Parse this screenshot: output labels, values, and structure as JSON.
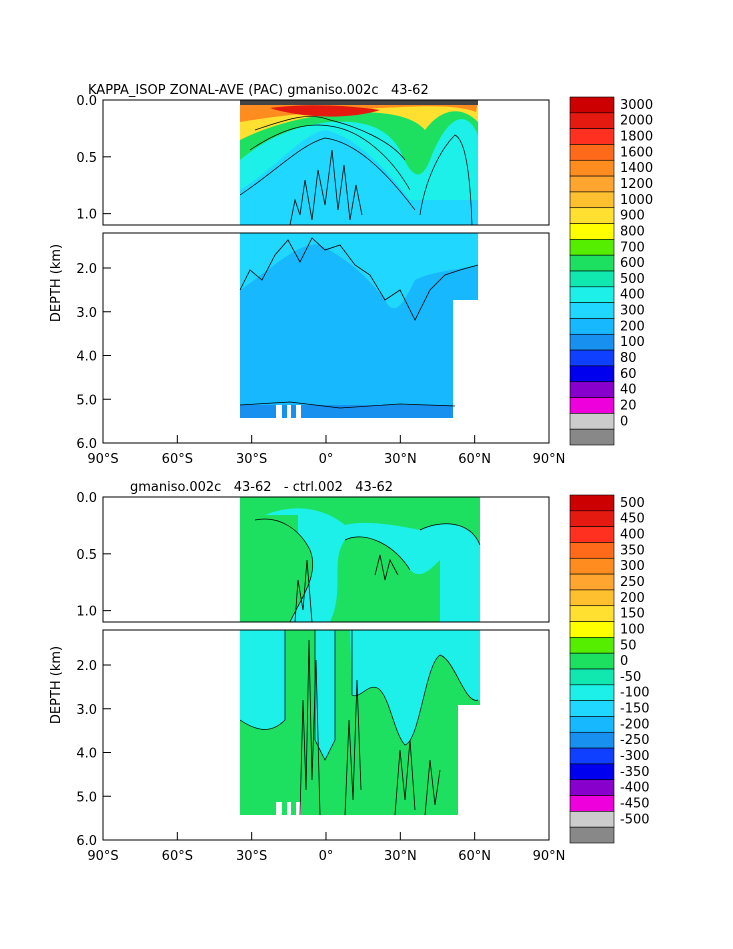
{
  "chart_data": [
    {
      "type": "heatmap",
      "title": "KAPPA_ISOP ZONAL-AVE (PAC) gmaniso.002c  43-62 ",
      "ylabel": "DEPTH (km)",
      "xlabel": "",
      "xticks": [
        "90°S",
        "60°S",
        "30°S",
        "0°",
        "30°N",
        "60°N",
        "90°N"
      ],
      "xlim": [
        -90,
        90
      ],
      "upper_yticks": [
        "0.0",
        "0.5",
        "1.0"
      ],
      "upper_ylim": [
        0,
        1.1
      ],
      "lower_yticks": [
        "2.0",
        "3.0",
        "4.0",
        "5.0",
        "6.0"
      ],
      "lower_ylim": [
        1.2,
        6.0
      ],
      "data_lat_range": [
        -34,
        62
      ],
      "colorbar_labels": [
        "3000",
        "2000",
        "1800",
        "1600",
        "1400",
        "1200",
        "1000",
        "900",
        "800",
        "700",
        "600",
        "500",
        "400",
        "300",
        "200",
        "100",
        "80",
        "60",
        "40",
        "20",
        "0"
      ],
      "colorbar_colors": [
        "#cc0000",
        "#e41a10",
        "#ff3020",
        "#ff6a1a",
        "#ff8c1e",
        "#ffa530",
        "#ffc030",
        "#ffe030",
        "#ffff00",
        "#55ee00",
        "#1ee060",
        "#10e8b0",
        "#1cf0e8",
        "#20d8ff",
        "#18b8ff",
        "#1890f0",
        "#1040ff",
        "#0000ee",
        "#8800cc",
        "#ee00dd",
        "#cccccc",
        "#888888"
      ]
    },
    {
      "type": "heatmap",
      "title": "gmaniso.002c  43-62  - ctrl.002  43-62 ",
      "ylabel": "DEPTH (km)",
      "xlabel": "",
      "xticks": [
        "90°S",
        "60°S",
        "30°S",
        "0°",
        "30°N",
        "60°N",
        "90°N"
      ],
      "xlim": [
        -90,
        90
      ],
      "upper_yticks": [
        "0.0",
        "0.5",
        "1.0"
      ],
      "upper_ylim": [
        0,
        1.1
      ],
      "lower_yticks": [
        "2.0",
        "3.0",
        "4.0",
        "5.0",
        "6.0"
      ],
      "lower_ylim": [
        1.2,
        6.0
      ],
      "data_lat_range": [
        -34,
        62
      ],
      "colorbar_labels": [
        "500",
        "450",
        "400",
        "350",
        "300",
        "250",
        "200",
        "150",
        "100",
        "50",
        "0",
        "-50",
        "-100",
        "-150",
        "-200",
        "-250",
        "-300",
        "-350",
        "-400",
        "-450",
        "-500"
      ],
      "colorbar_colors": [
        "#cc0000",
        "#e41a10",
        "#ff3020",
        "#ff6a1a",
        "#ff8c1e",
        "#ffa530",
        "#ffc030",
        "#ffe030",
        "#ffff00",
        "#55ee00",
        "#1ee060",
        "#10e8b0",
        "#1cf0e8",
        "#20d8ff",
        "#18b8ff",
        "#1890f0",
        "#1040ff",
        "#0000ee",
        "#8800cc",
        "#ee00dd",
        "#cccccc",
        "#888888"
      ]
    }
  ]
}
